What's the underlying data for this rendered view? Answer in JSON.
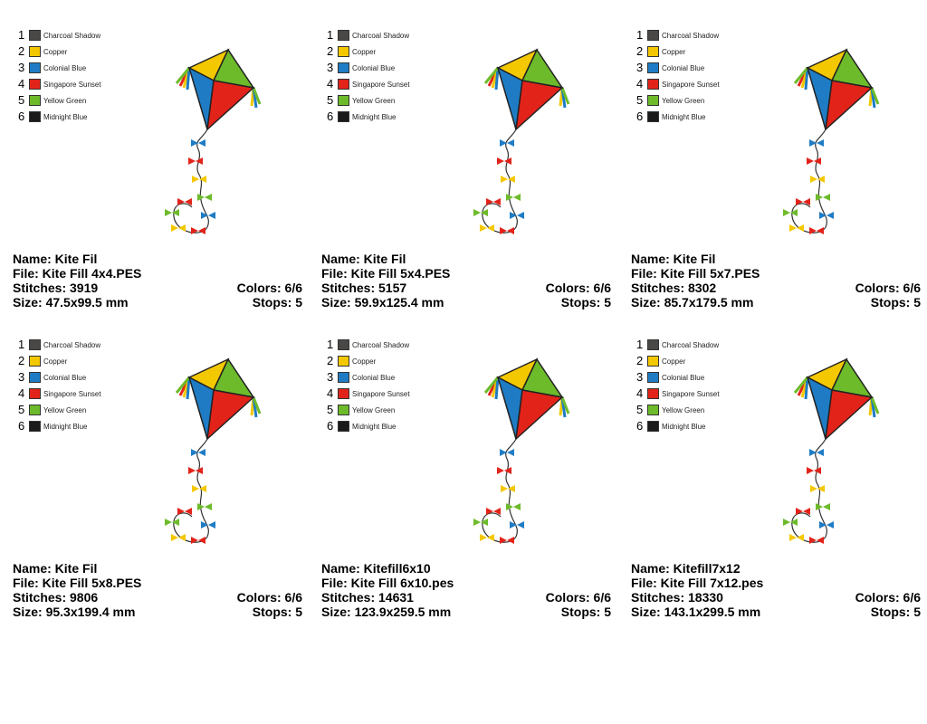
{
  "palette": [
    {
      "num": "1",
      "name": "Charcoal Shadow",
      "color": "#4a4846"
    },
    {
      "num": "2",
      "name": "Copper",
      "color": "#f4c800"
    },
    {
      "num": "3",
      "name": "Colonial Blue",
      "color": "#1f7cc4"
    },
    {
      "num": "4",
      "name": "Singapore Sunset",
      "color": "#e2231a"
    },
    {
      "num": "5",
      "name": "Yellow Green",
      "color": "#6dbb2a"
    },
    {
      "num": "6",
      "name": "Midnight Blue",
      "color": "#1a1a1a"
    }
  ],
  "designs": [
    {
      "name": "Name: Kite Fil",
      "file": "File: Kite Fill 4x4.PES",
      "stitches": "Stitches: 3919",
      "colors": "Colors: 6/6",
      "size": "Size: 47.5x99.5 mm",
      "stops": "Stops: 5"
    },
    {
      "name": "Name: Kite Fil",
      "file": "File: Kite Fill 5x4.PES",
      "stitches": "Stitches: 5157",
      "colors": "Colors: 6/6",
      "size": "Size: 59.9x125.4 mm",
      "stops": "Stops: 5"
    },
    {
      "name": "Name: Kite Fil",
      "file": "File: Kite Fill 5x7.PES",
      "stitches": "Stitches: 8302",
      "colors": "Colors: 6/6",
      "size": "Size: 85.7x179.5 mm",
      "stops": "Stops: 5"
    },
    {
      "name": "Name: Kite Fil",
      "file": "File: Kite Fill 5x8.PES",
      "stitches": "Stitches: 9806",
      "colors": "Colors: 6/6",
      "size": "Size: 95.3x199.4 mm",
      "stops": "Stops: 5"
    },
    {
      "name": "Name: Kitefill6x10",
      "file": "File: Kite Fill 6x10.pes",
      "stitches": "Stitches: 14631",
      "colors": "Colors: 6/6",
      "size": "Size: 123.9x259.5 mm",
      "stops": "Stops: 5"
    },
    {
      "name": "Name: Kitefill7x12",
      "file": "File: Kite Fill 7x12.pes",
      "stitches": "Stitches: 18330",
      "colors": "Colors: 6/6",
      "size": "Size: 143.1x299.5 mm",
      "stops": "Stops: 5"
    }
  ]
}
